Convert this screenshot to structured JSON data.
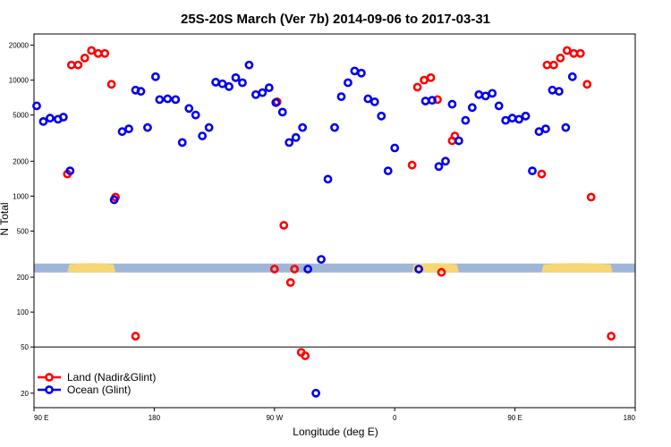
{
  "chart_data": {
    "type": "scatter",
    "title": "25S-20S March (Ver 7b)   2014-09-06 to 2017-03-31",
    "xlabel": "Longitude (deg E)",
    "ylabel": "N Total",
    "x_ticks": [
      {
        "value": 90,
        "label": "90 E"
      },
      {
        "value": 180,
        "label": "180"
      },
      {
        "value": 270,
        "label": "90 W"
      },
      {
        "value": 360,
        "label": "0"
      },
      {
        "value": 450,
        "label": "90 E"
      },
      {
        "value": 540,
        "label": "180"
      }
    ],
    "xlim": [
      90,
      540
    ],
    "ylim": [
      15,
      25000
    ],
    "y_scale": "log",
    "y_ticks": [
      {
        "value": 20000,
        "label": "20000"
      },
      {
        "value": 10000,
        "label": "10000"
      },
      {
        "value": 5000,
        "label": "5000"
      },
      {
        "value": 2000,
        "label": "2000"
      },
      {
        "value": 1000,
        "label": "1000"
      },
      {
        "value": 500,
        "label": "500"
      },
      {
        "value": 200,
        "label": "200"
      },
      {
        "value": 100,
        "label": "100"
      },
      {
        "value": 50,
        "label": "50"
      },
      {
        "value": 20,
        "label": "20"
      }
    ],
    "reference_line_y": 50,
    "map_strip_y": 240,
    "colors": {
      "land": "#ff0000",
      "ocean": "#0000ee",
      "sea": "#9fb6d8",
      "land_fill": "#f7d774",
      "frame": "#000000"
    },
    "land_bands": [
      [
        115,
        151
      ],
      [
        373,
        408
      ],
      [
        470,
        523
      ]
    ],
    "series": [
      {
        "name": "Land (Nadir&Glint)",
        "key": "land",
        "points": [
          [
            115,
            1550
          ],
          [
            118,
            13500
          ],
          [
            123,
            13500
          ],
          [
            128,
            15500
          ],
          [
            133,
            18000
          ],
          [
            138,
            17000
          ],
          [
            143,
            17000
          ],
          [
            148,
            9200
          ],
          [
            151,
            980
          ],
          [
            166,
            62
          ],
          [
            270,
            235
          ],
          [
            272,
            6500
          ],
          [
            277,
            560
          ],
          [
            282,
            180
          ],
          [
            285,
            235
          ],
          [
            290,
            45
          ],
          [
            293,
            42
          ],
          [
            373,
            1850
          ],
          [
            377,
            8700
          ],
          [
            382,
            10000
          ],
          [
            387,
            10500
          ],
          [
            392,
            6800
          ],
          [
            395,
            220
          ],
          [
            403,
            3000
          ],
          [
            405,
            3300
          ],
          [
            470,
            1550
          ],
          [
            474,
            13500
          ],
          [
            479,
            13500
          ],
          [
            484,
            15500
          ],
          [
            489,
            18000
          ],
          [
            494,
            17000
          ],
          [
            499,
            17000
          ],
          [
            504,
            9200
          ],
          [
            507,
            980
          ],
          [
            522,
            62
          ]
        ]
      },
      {
        "name": "Ocean (Glint)",
        "key": "ocean",
        "points": [
          [
            92,
            6000
          ],
          [
            97,
            4400
          ],
          [
            102,
            4700
          ],
          [
            108,
            4600
          ],
          [
            112,
            4800
          ],
          [
            117,
            1650
          ],
          [
            150,
            930
          ],
          [
            156,
            3600
          ],
          [
            161,
            3800
          ],
          [
            166,
            8200
          ],
          [
            170,
            8000
          ],
          [
            175,
            3900
          ],
          [
            181,
            10700
          ],
          [
            184,
            6800
          ],
          [
            190,
            6900
          ],
          [
            196,
            6800
          ],
          [
            201,
            2900
          ],
          [
            206,
            5700
          ],
          [
            211,
            5000
          ],
          [
            216,
            3300
          ],
          [
            221,
            3900
          ],
          [
            226,
            9600
          ],
          [
            231,
            9300
          ],
          [
            236,
            8800
          ],
          [
            241,
            10500
          ],
          [
            246,
            9500
          ],
          [
            251,
            13500
          ],
          [
            256,
            7500
          ],
          [
            261,
            7800
          ],
          [
            266,
            8600
          ],
          [
            271,
            6400
          ],
          [
            276,
            5300
          ],
          [
            281,
            2900
          ],
          [
            286,
            3200
          ],
          [
            291,
            3900
          ],
          [
            295,
            235
          ],
          [
            301,
            20
          ],
          [
            305,
            285
          ],
          [
            310,
            1400
          ],
          [
            315,
            3900
          ],
          [
            320,
            7200
          ],
          [
            325,
            9500
          ],
          [
            330,
            12000
          ],
          [
            335,
            11500
          ],
          [
            340,
            6900
          ],
          [
            345,
            6500
          ],
          [
            350,
            4900
          ],
          [
            355,
            1650
          ],
          [
            360,
            2600
          ],
          [
            378,
            235
          ],
          [
            383,
            6600
          ],
          [
            388,
            6700
          ],
          [
            393,
            1800
          ],
          [
            398,
            2000
          ],
          [
            403,
            6200
          ],
          [
            408,
            3000
          ],
          [
            413,
            4500
          ],
          [
            418,
            5800
          ],
          [
            423,
            7500
          ],
          [
            428,
            7300
          ],
          [
            433,
            7700
          ],
          [
            438,
            6000
          ],
          [
            443,
            4500
          ],
          [
            448,
            4700
          ],
          [
            453,
            4600
          ],
          [
            458,
            4900
          ],
          [
            463,
            1650
          ],
          [
            468,
            3600
          ],
          [
            473,
            3800
          ],
          [
            478,
            8200
          ],
          [
            483,
            8000
          ],
          [
            488,
            3900
          ],
          [
            493,
            10700
          ]
        ]
      }
    ],
    "legend": {
      "position": "bottom-left",
      "entries": [
        {
          "label": "Land (Nadir&Glint)",
          "key": "land"
        },
        {
          "label": "Ocean (Glint)",
          "key": "ocean"
        }
      ]
    }
  }
}
